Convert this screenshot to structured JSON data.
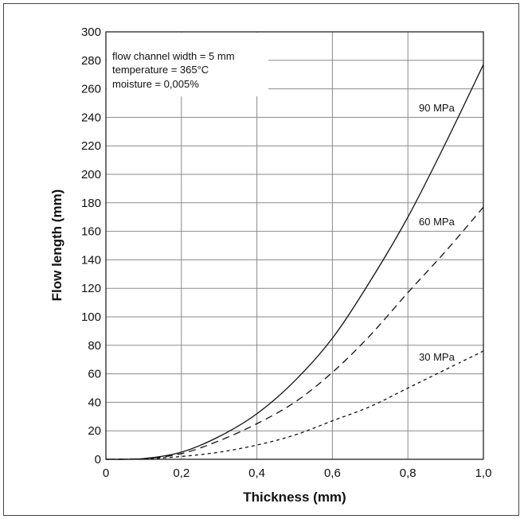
{
  "chart_data": {
    "type": "line",
    "title": "",
    "xlabel": "Thickness (mm)",
    "ylabel": "Flow length (mm)",
    "xlim": [
      0,
      1.0
    ],
    "ylim": [
      0,
      300
    ],
    "grid": true,
    "x_ticks": [
      {
        "value": 0,
        "label": "0"
      },
      {
        "value": 0.2,
        "label": "0,2"
      },
      {
        "value": 0.4,
        "label": "0,4"
      },
      {
        "value": 0.6,
        "label": "0,6"
      },
      {
        "value": 0.8,
        "label": "0,8"
      },
      {
        "value": 1.0,
        "label": "1,0"
      }
    ],
    "y_ticks": [
      {
        "value": 0,
        "label": "0"
      },
      {
        "value": 20,
        "label": "20"
      },
      {
        "value": 40,
        "label": "40"
      },
      {
        "value": 60,
        "label": "60"
      },
      {
        "value": 80,
        "label": "80"
      },
      {
        "value": 100,
        "label": "100"
      },
      {
        "value": 120,
        "label": "120"
      },
      {
        "value": 140,
        "label": "140"
      },
      {
        "value": 160,
        "label": "160"
      },
      {
        "value": 180,
        "label": "180"
      },
      {
        "value": 200,
        "label": "200"
      },
      {
        "value": 220,
        "label": "220"
      },
      {
        "value": 240,
        "label": "240"
      },
      {
        "value": 260,
        "label": "260"
      },
      {
        "value": 280,
        "label": "280"
      },
      {
        "value": 300,
        "label": "300"
      }
    ],
    "annotations": [
      "flow channel width = 5 mm",
      "temperature = 365°C",
      "moisture = 0,005%"
    ],
    "series": [
      {
        "name": "90 MPa",
        "style": "solid",
        "points": [
          [
            0,
            0
          ],
          [
            0.1,
            0.5
          ],
          [
            0.2,
            5
          ],
          [
            0.3,
            16
          ],
          [
            0.4,
            32
          ],
          [
            0.5,
            55
          ],
          [
            0.6,
            85
          ],
          [
            0.7,
            125
          ],
          [
            0.8,
            170
          ],
          [
            0.9,
            222
          ],
          [
            1.0,
            277
          ]
        ]
      },
      {
        "name": "60 MPa",
        "style": "dashed",
        "points": [
          [
            0,
            0
          ],
          [
            0.1,
            0.5
          ],
          [
            0.2,
            4
          ],
          [
            0.3,
            13
          ],
          [
            0.4,
            25
          ],
          [
            0.5,
            40
          ],
          [
            0.6,
            61
          ],
          [
            0.7,
            87
          ],
          [
            0.8,
            117
          ],
          [
            0.9,
            146
          ],
          [
            1.0,
            177
          ]
        ]
      },
      {
        "name": "30 MPa",
        "style": "dotted",
        "points": [
          [
            0,
            0
          ],
          [
            0.1,
            0.3
          ],
          [
            0.2,
            2
          ],
          [
            0.3,
            5
          ],
          [
            0.4,
            10
          ],
          [
            0.5,
            17
          ],
          [
            0.6,
            27
          ],
          [
            0.7,
            37
          ],
          [
            0.8,
            50
          ],
          [
            0.9,
            63
          ],
          [
            1.0,
            76
          ]
        ]
      }
    ]
  }
}
